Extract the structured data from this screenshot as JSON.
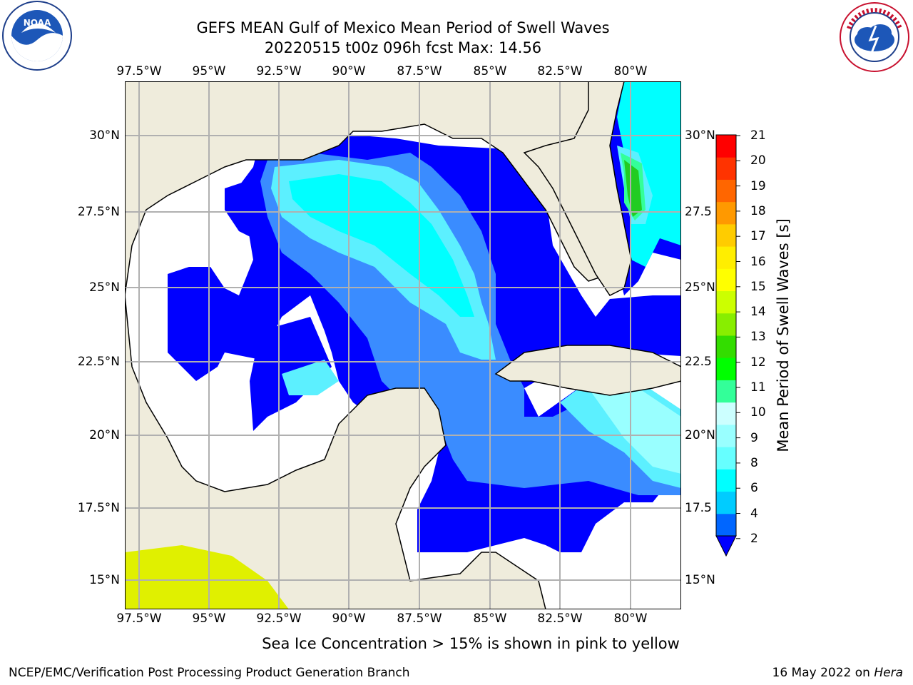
{
  "title_line1": "GEFS MEAN Gulf of Mexico Mean Period of Swell Waves",
  "title_line2": "20220515 t00z 096h fcst   Max: 14.56",
  "lon_labels": [
    "97.5°W",
    "95°W",
    "92.5°W",
    "90°W",
    "87.5°W",
    "85°W",
    "82.5°W",
    "80°W"
  ],
  "lat_labels_left": [
    "30°N",
    "27.5°N",
    "25°N",
    "22.5°N",
    "20°N",
    "17.5°N",
    "15°N"
  ],
  "lat_labels_right": [
    "30°N",
    "27.5",
    "25°N",
    "22.5",
    "20°N",
    "17.5",
    "15°N"
  ],
  "colorbar": {
    "title": "Mean Period of Swell Waves [s]",
    "ticks": [
      "21",
      "20",
      "19",
      "18",
      "17",
      "16",
      "15",
      "14",
      "13",
      "12",
      "11",
      "10",
      "9",
      "8",
      "6",
      "4",
      "2"
    ],
    "colors": [
      "#0066ff",
      "#00ccff",
      "#00ffff",
      "#66ffff",
      "#99ffff",
      "#ccffff",
      "#33ff99",
      "#00ff00",
      "#33dd00",
      "#88ee00",
      "#ccff00",
      "#ffff00",
      "#ffee00",
      "#ffcc00",
      "#ff9900",
      "#ff6600",
      "#ff3300",
      "#ff0000"
    ],
    "extend_color": "#0000ff"
  },
  "colors": {
    "land": "#efecdc",
    "ocean_low": "#0000ff",
    "ocean_mid": "#3a8cff",
    "ocean_high": "#5cf0ff",
    "ocean_peak": "#00ffff",
    "grid": "#b0b0b0"
  },
  "logos": {
    "left": "NOAA",
    "right": "NATIONAL WEATHER SERVICE"
  },
  "ice_note": "Sea Ice Concentration > 15% is shown in pink to yellow",
  "footer_left": "NCEP/EMC/Verification Post Processing Product Generation Branch",
  "footer_date": "16 May 2022 on ",
  "footer_host": "Hera"
}
